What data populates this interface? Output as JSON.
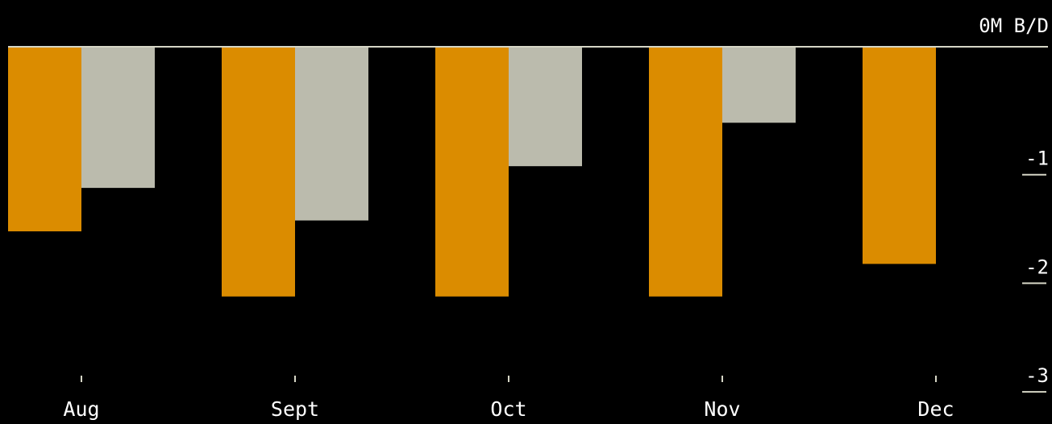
{
  "colors": {
    "background": "#000000",
    "series_1": "#DB8C00",
    "series_2": "#BBBBAD",
    "axis": "#D6D6C6",
    "text": "#FFFFFF"
  },
  "chart_data": {
    "type": "bar",
    "title": "",
    "xlabel": "",
    "ylabel": "",
    "unit_label": "0M B/D",
    "categories": [
      "Aug",
      "Sept",
      "Oct",
      "Nov",
      "Dec"
    ],
    "series": [
      {
        "color": "#DB8C00",
        "values": [
          -1.7,
          -2.3,
          -2.3,
          -2.3,
          -2.0
        ]
      },
      {
        "color": "#BBBBAD",
        "values": [
          -1.3,
          -1.6,
          -1.1,
          -0.7,
          null
        ]
      }
    ],
    "yticks": [
      {
        "value": 0,
        "label": ""
      },
      {
        "value": -1,
        "label": "-1"
      },
      {
        "value": -2,
        "label": "-2"
      },
      {
        "value": -3,
        "label": "-3"
      }
    ],
    "ylim": [
      -3,
      0
    ],
    "grid": false,
    "axis_position": "right",
    "legend": "none"
  }
}
